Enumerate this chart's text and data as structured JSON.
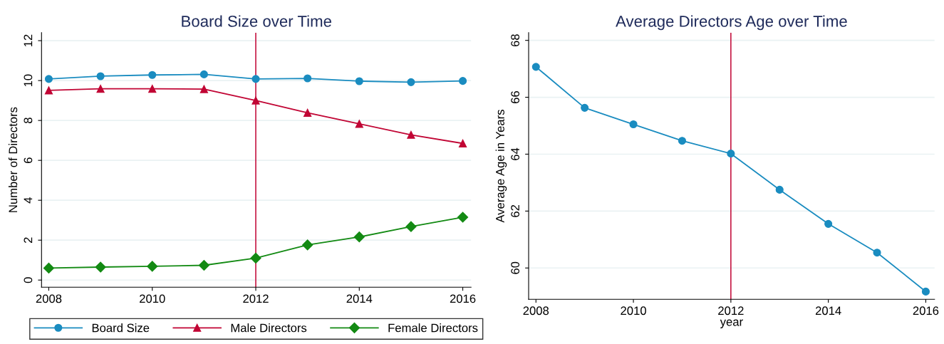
{
  "chart_data": [
    {
      "type": "line",
      "title": "Board Size over Time",
      "ylabel": "Number of Directors",
      "x": [
        2008,
        2009,
        2010,
        2011,
        2012,
        2013,
        2014,
        2015,
        2016
      ],
      "xlim": [
        2007.86,
        2016.16
      ],
      "xticks": [
        2008,
        2010,
        2012,
        2014,
        2016
      ],
      "ylim": [
        -0.36,
        12.4
      ],
      "yticks": [
        0,
        2,
        4,
        6,
        8,
        10,
        12
      ],
      "grid": "y",
      "legend": "bottom",
      "series": [
        {
          "name": "Board Size",
          "color": "#1a8cc0",
          "marker": "circle",
          "values": [
            10.08,
            10.22,
            10.28,
            10.31,
            10.08,
            10.11,
            9.97,
            9.92,
            9.98
          ]
        },
        {
          "name": "Male Directors",
          "color": "#c10534",
          "marker": "triangle",
          "values": [
            9.51,
            9.59,
            9.59,
            9.57,
            9.0,
            8.38,
            7.83,
            7.28,
            6.85
          ]
        },
        {
          "name": "Female Directors",
          "color": "#138a13",
          "marker": "diamond",
          "values": [
            0.6,
            0.65,
            0.69,
            0.74,
            1.1,
            1.76,
            2.16,
            2.68,
            3.15
          ]
        }
      ],
      "ref_lines": [
        {
          "axis": "x",
          "value": 2012,
          "color": "#c10534"
        }
      ]
    },
    {
      "type": "line",
      "title": "Average Directors Age over Time",
      "xlabel": "year",
      "ylabel": "Average Age in Years",
      "x": [
        2008,
        2009,
        2010,
        2011,
        2012,
        2013,
        2014,
        2015,
        2016
      ],
      "xlim": [
        2007.85,
        2016.18
      ],
      "xticks": [
        2008,
        2010,
        2012,
        2014,
        2016
      ],
      "ylim": [
        58.9,
        68.27
      ],
      "yticks": [
        60,
        62,
        64,
        66,
        68
      ],
      "grid": "y",
      "marker": "circle",
      "series": [
        {
          "color": "#1a8cc0",
          "values": [
            67.07,
            65.63,
            65.05,
            64.47,
            64.02,
            62.75,
            61.55,
            60.54,
            59.17
          ]
        }
      ],
      "ref_lines": [
        {
          "axis": "x",
          "value": 2012,
          "color": "#c10534"
        }
      ]
    }
  ]
}
